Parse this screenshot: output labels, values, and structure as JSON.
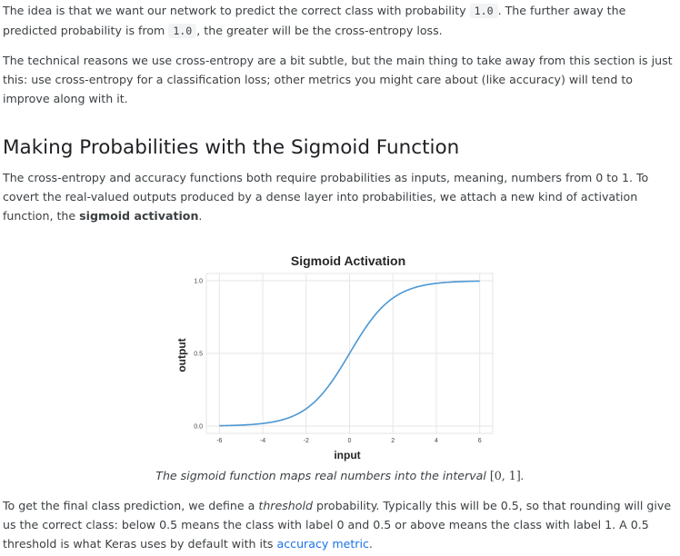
{
  "paragraph_1": {
    "before_code_1": "The idea is that we want our network to predict the correct class with probability ",
    "code_1": "1.0",
    "between_code": ". The further away the predicted probability is from ",
    "code_2": "1.0",
    "after_code_2": ", the greater will be the cross-entropy loss."
  },
  "paragraph_2": "The technical reasons we use cross-entropy are a bit subtle, but the main thing to take away from this section is just this: use cross-entropy for a classification loss; other metrics you might care about (like accuracy) will tend to improve along with it.",
  "section_heading": "Making Probabilities with the Sigmoid Function",
  "paragraph_3": {
    "text_before": "The cross-entropy and accuracy functions both require probabilities as inputs, meaning, numbers from 0 to 1. To covert the real-valued outputs produced by a dense layer into probabilities, we attach a new kind of activation function, the ",
    "bold": "sigmoid activation",
    "text_after": "."
  },
  "chart_data": {
    "type": "line",
    "title": "Sigmoid Activation",
    "xlabel": "input",
    "ylabel": "output",
    "xlim": [
      -6.6,
      6.6
    ],
    "ylim": [
      -0.05,
      1.05
    ],
    "x_ticks": [
      -6,
      -4,
      -2,
      0,
      2,
      4,
      6
    ],
    "y_ticks": [
      0.0,
      0.5,
      1.0
    ],
    "x_tick_labels": [
      "-6",
      "-4",
      "-2",
      "0",
      "2",
      "4",
      "6"
    ],
    "y_tick_labels": [
      "0.0",
      "0.5",
      "1.0"
    ],
    "grid": true,
    "series": [
      {
        "color": "#4c97d3",
        "x": [
          -6,
          -5,
          -4,
          -3,
          -2,
          -1.5,
          -1,
          -0.5,
          0,
          0.5,
          1,
          1.5,
          2,
          3,
          4,
          5,
          6
        ],
        "y": [
          0.002,
          0.007,
          0.018,
          0.047,
          0.119,
          0.182,
          0.269,
          0.378,
          0.5,
          0.622,
          0.731,
          0.818,
          0.881,
          0.953,
          0.982,
          0.993,
          0.998
        ]
      }
    ]
  },
  "caption": {
    "text": "The sigmoid function maps real numbers into the interval ",
    "math": "[0, 1]",
    "end": "."
  },
  "paragraph_4": {
    "text_1": "To get the final class prediction, we define a ",
    "italic": "threshold",
    "text_2": " probability. Typically this will be 0.5, so that rounding will give us the correct class: below 0.5 means the class with label 0 and 0.5 or above means the class with label 1. A 0.5 threshold is what Keras uses by default with its ",
    "link": "accuracy metric",
    "text_3": "."
  }
}
